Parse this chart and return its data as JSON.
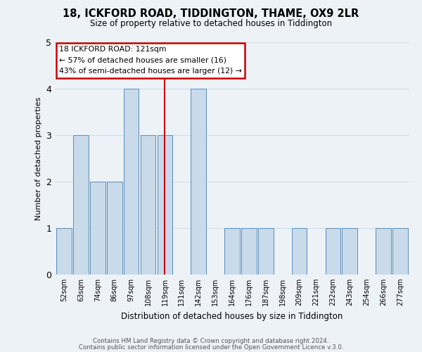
{
  "title": "18, ICKFORD ROAD, TIDDINGTON, THAME, OX9 2LR",
  "subtitle": "Size of property relative to detached houses in Tiddington",
  "xlabel": "Distribution of detached houses by size in Tiddington",
  "ylabel": "Number of detached properties",
  "bar_labels": [
    "52sqm",
    "63sqm",
    "74sqm",
    "86sqm",
    "97sqm",
    "108sqm",
    "119sqm",
    "131sqm",
    "142sqm",
    "153sqm",
    "164sqm",
    "176sqm",
    "187sqm",
    "198sqm",
    "209sqm",
    "221sqm",
    "232sqm",
    "243sqm",
    "254sqm",
    "266sqm",
    "277sqm"
  ],
  "bar_values": [
    1,
    3,
    2,
    2,
    4,
    3,
    3,
    0,
    4,
    0,
    1,
    1,
    1,
    0,
    1,
    0,
    1,
    1,
    0,
    1,
    1
  ],
  "bar_color": "#c9daea",
  "bar_edge_color": "#5b8db8",
  "reference_line_label": "119sqm",
  "reference_line_color": "#cc0000",
  "annotation_title": "18 ICKFORD ROAD: 121sqm",
  "annotation_line1": "← 57% of detached houses are smaller (16)",
  "annotation_line2": "43% of semi-detached houses are larger (12) →",
  "annotation_box_color": "#ffffff",
  "annotation_box_edge": "#cc0000",
  "ylim": [
    0,
    5
  ],
  "yticks": [
    0,
    1,
    2,
    3,
    4,
    5
  ],
  "grid_color": "#d0dce8",
  "bg_color": "#edf2f7",
  "footer1": "Contains HM Land Registry data © Crown copyright and database right 2024.",
  "footer2": "Contains public sector information licensed under the Open Government Licence v.3.0."
}
